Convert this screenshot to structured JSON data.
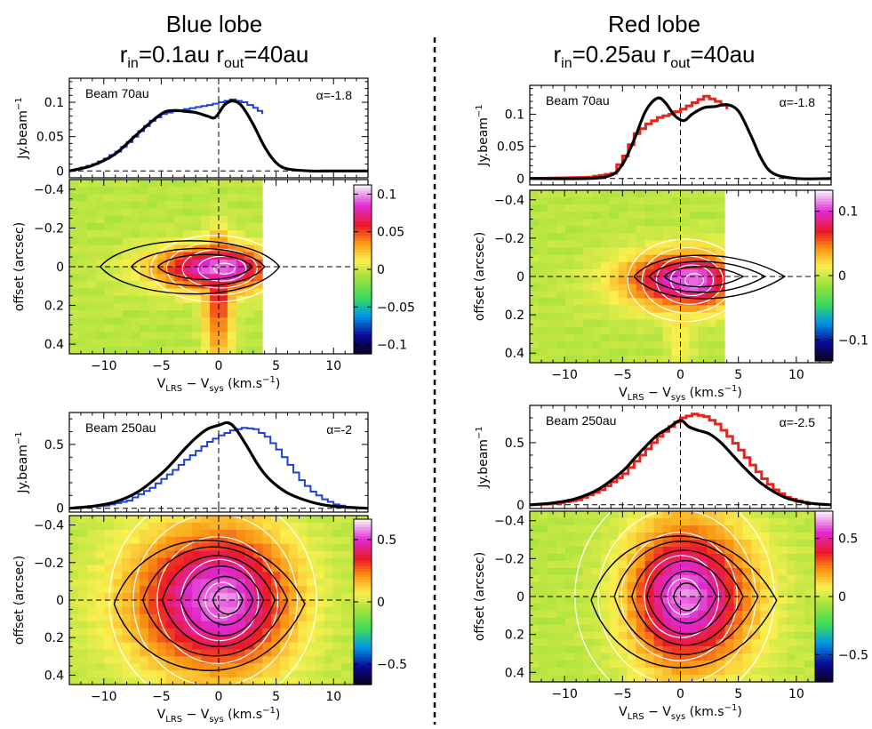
{
  "headers": {
    "blue": {
      "title": "Blue lobe",
      "r_in": "0.1au",
      "r_out": "40au"
    },
    "red": {
      "title": "Red lobe",
      "r_in": "0.25au",
      "r_out": "40au"
    }
  },
  "symbols": {
    "r": "r",
    "in": "in",
    "out": "out",
    "eq": "="
  },
  "axis_text": {
    "spec_y": "Jy.beam",
    "spec_y_sup": "−1",
    "pv_y": "offset (arcsec)",
    "pv_x_v": "V",
    "pv_x_lrs": "LRS",
    "pv_x_minus": " − V",
    "pv_x_sys": "sys",
    "pv_x_unit": " (km.s",
    "pv_x_unit_sup": "−1",
    "pv_x_close": ")"
  },
  "colors": {
    "blue_model": "#1f3fd6",
    "red_model": "#e8221c",
    "observed": "#000000",
    "divider": "#000000"
  },
  "chart_data": [
    {
      "id": "blue_top",
      "lobe": "blue",
      "type": "line",
      "spectrum": {
        "beam_label": "Beam 70au",
        "alpha_label": "α=-1.8",
        "xlim": [
          -13,
          13
        ],
        "ylim": [
          -0.01,
          0.135
        ],
        "yticks": [
          0,
          0.05,
          0.1
        ],
        "ytick_labels": [
          "0",
          "0.05",
          "0.1"
        ],
        "black": {
          "x": [
            -13,
            -11,
            -9,
            -7,
            -5,
            -4,
            -3,
            -2,
            -1,
            -0.3,
            0.5,
            1.2,
            2,
            3,
            4,
            5,
            6,
            8,
            10,
            13
          ],
          "y": [
            0,
            0.008,
            0.025,
            0.055,
            0.083,
            0.088,
            0.087,
            0.085,
            0.08,
            0.078,
            0.096,
            0.102,
            0.095,
            0.068,
            0.035,
            0.012,
            0.003,
            0,
            0,
            0
          ]
        },
        "color": {
          "x": [
            -13,
            -12,
            -11,
            -10,
            -9,
            -8,
            -7,
            -6,
            -5,
            -4,
            -3,
            -2,
            -1,
            0,
            1,
            2,
            3,
            3.8
          ],
          "y": [
            0,
            0.005,
            0.01,
            0.018,
            0.028,
            0.042,
            0.058,
            0.073,
            0.083,
            0.087,
            0.09,
            0.093,
            0.096,
            0.1,
            0.104,
            0.1,
            0.092,
            0.083
          ]
        },
        "color_role": "blue_model"
      },
      "pv": {
        "xlim": [
          -13,
          13
        ],
        "ylim": [
          0.45,
          -0.45
        ],
        "xticks": [
          -10,
          -5,
          0,
          5,
          10
        ],
        "xtick_labels": [
          "−10",
          "−5",
          "0",
          "5",
          "10"
        ],
        "yticks": [
          -0.4,
          -0.2,
          0,
          0.2,
          0.4
        ],
        "ytick_labels": [
          "−0.4",
          "−0.2",
          "0",
          "0.2",
          "0.4"
        ],
        "data_xmax": 3.8,
        "vmax": 0.11,
        "colorbar_ticks": [
          0.1,
          0.05,
          0,
          -0.05,
          -0.1
        ],
        "colorbar_labels": [
          "0.1",
          "0.05",
          "0",
          "−0.05",
          "−0.1"
        ],
        "model_blob": {
          "cx": 0.5,
          "cy": 0.01,
          "sx": 2.6,
          "sy": 0.08,
          "skew": 0.6,
          "tail": 0.4
        },
        "contours": [
          {
            "cx": -2.5,
            "cy": 0.0,
            "rx": 7.8,
            "ry": 0.17,
            "shift": 1.3
          },
          {
            "cx": -1.8,
            "cy": 0.0,
            "rx": 5.8,
            "ry": 0.12,
            "shift": 1.0
          },
          {
            "cx": -1.2,
            "cy": 0.0,
            "rx": 4.1,
            "ry": 0.08,
            "shift": 0.7
          }
        ]
      }
    },
    {
      "id": "red_top",
      "lobe": "red",
      "type": "line",
      "spectrum": {
        "beam_label": "Beam 70au",
        "alpha_label": "α=-1.8",
        "xlim": [
          -13,
          13
        ],
        "ylim": [
          -0.01,
          0.145
        ],
        "yticks": [
          0,
          0.05,
          0.1
        ],
        "ytick_labels": [
          "0",
          "0.05",
          "0.1"
        ],
        "black": {
          "x": [
            -13,
            -8,
            -6,
            -5,
            -4,
            -3,
            -2,
            -1.3,
            -0.5,
            0.3,
            1,
            2,
            3,
            4,
            5,
            6,
            7,
            8,
            10,
            13
          ],
          "y": [
            0,
            0,
            0.005,
            0.022,
            0.06,
            0.105,
            0.125,
            0.118,
            0.098,
            0.09,
            0.1,
            0.11,
            0.112,
            0.115,
            0.105,
            0.07,
            0.03,
            0.008,
            0,
            0
          ]
        },
        "color": {
          "x": [
            -13,
            -8,
            -6,
            -5,
            -4,
            -3,
            -2,
            -1,
            0,
            1,
            2,
            3,
            4
          ],
          "y": [
            0,
            0.002,
            0.008,
            0.035,
            0.07,
            0.085,
            0.095,
            0.1,
            0.108,
            0.118,
            0.128,
            0.12,
            0.108
          ]
        },
        "color_role": "red_model"
      },
      "pv": {
        "xlim": [
          -13,
          13
        ],
        "ylim": [
          0.45,
          -0.45
        ],
        "xticks": [
          -10,
          -5,
          0,
          5,
          10
        ],
        "xtick_labels": [
          "−10",
          "−5",
          "0",
          "5",
          "10"
        ],
        "yticks": [
          -0.4,
          -0.2,
          0,
          0.2,
          0.4
        ],
        "ytick_labels": [
          "−0.4",
          "−0.2",
          "0",
          "0.2",
          "0.4"
        ],
        "data_xmax": 3.8,
        "vmax": 0.13,
        "colorbar_ticks": [
          0.1,
          0,
          -0.1
        ],
        "colorbar_labels": [
          "0.1",
          "0",
          "−0.1"
        ],
        "model_blob": {
          "cx": 1.2,
          "cy": 0.02,
          "sx": 2.3,
          "sy": 0.1,
          "skew": 0.8,
          "tail": 0.15
        },
        "contours": [
          {
            "cx": 2.5,
            "cy": 0.0,
            "rx": 6.5,
            "ry": 0.14,
            "shift": -1.0
          },
          {
            "cx": 2.3,
            "cy": 0.0,
            "rx": 5.0,
            "ry": 0.1,
            "shift": -0.8
          },
          {
            "cx": 2.0,
            "cy": 0.0,
            "rx": 3.4,
            "ry": 0.065,
            "shift": -0.5
          }
        ]
      }
    },
    {
      "id": "blue_bottom",
      "lobe": "blue",
      "type": "line",
      "spectrum": {
        "beam_label": "Beam 250au",
        "alpha_label": "α=-2",
        "xlim": [
          -13,
          13
        ],
        "ylim": [
          -0.03,
          0.75
        ],
        "yticks": [
          0,
          0.5
        ],
        "ytick_labels": [
          "0",
          "0.5"
        ],
        "black": {
          "x": [
            -13,
            -11,
            -9,
            -7,
            -5,
            -4,
            -3,
            -2,
            -1,
            0,
            0.8,
            1.5,
            2.5,
            3.5,
            4.5,
            6,
            8,
            10,
            13
          ],
          "y": [
            0,
            0.015,
            0.05,
            0.13,
            0.27,
            0.36,
            0.46,
            0.55,
            0.62,
            0.65,
            0.67,
            0.62,
            0.48,
            0.33,
            0.22,
            0.12,
            0.05,
            0.015,
            0
          ]
        },
        "color": {
          "x": [
            -13,
            -10,
            -8,
            -6,
            -4,
            -3,
            -2,
            -1,
            0,
            1,
            2,
            3,
            4,
            5,
            6,
            7,
            8,
            9,
            10,
            11
          ],
          "y": [
            0,
            0.02,
            0.06,
            0.16,
            0.3,
            0.38,
            0.45,
            0.52,
            0.57,
            0.61,
            0.63,
            0.62,
            0.56,
            0.46,
            0.34,
            0.22,
            0.13,
            0.07,
            0.03,
            0.01
          ]
        },
        "color_role": "blue_model"
      },
      "pv": {
        "xlim": [
          -13,
          13
        ],
        "ylim": [
          0.45,
          -0.45
        ],
        "xticks": [
          -10,
          -5,
          0,
          5,
          10
        ],
        "xtick_labels": [
          "−10",
          "−5",
          "0",
          "5",
          "10"
        ],
        "yticks": [
          -0.4,
          -0.2,
          0,
          0.2,
          0.4
        ],
        "ytick_labels": [
          "−0.4",
          "−0.2",
          "0",
          "0.2",
          "0.4"
        ],
        "data_xmax": 13,
        "vmax": 0.65,
        "colorbar_ticks": [
          0.5,
          0,
          -0.5
        ],
        "colorbar_labels": [
          "0.5",
          "0",
          "−0.5"
        ],
        "model_blob": {
          "cx": 0.3,
          "cy": 0.0,
          "sx": 4.2,
          "sy": 0.27,
          "skew": 0.3,
          "tail": 0
        },
        "contours": [
          {
            "cx": -0.8,
            "cy": 0.02,
            "rx": 8.3,
            "ry": 0.43,
            "shift": 0.3
          },
          {
            "cx": -0.3,
            "cy": 0.0,
            "rx": 6.3,
            "ry": 0.36,
            "shift": 0.3
          },
          {
            "cx": 0.0,
            "cy": 0.0,
            "rx": 4.9,
            "ry": 0.3,
            "shift": 0.2
          },
          {
            "cx": 0.3,
            "cy": 0.0,
            "rx": 3.6,
            "ry": 0.23,
            "shift": 0.2
          },
          {
            "cx": 0.6,
            "cy": 0.0,
            "rx": 2.4,
            "ry": 0.16,
            "shift": 0.1
          },
          {
            "cx": 0.8,
            "cy": 0.0,
            "rx": 1.3,
            "ry": 0.09,
            "shift": 0.1
          }
        ]
      }
    },
    {
      "id": "red_bottom",
      "lobe": "red",
      "type": "line",
      "spectrum": {
        "beam_label": "Beam 250au",
        "alpha_label": "α=-2.5",
        "xlim": [
          -13,
          13
        ],
        "ylim": [
          -0.03,
          0.8
        ],
        "yticks": [
          0,
          0.5
        ],
        "ytick_labels": [
          "0",
          "0.5"
        ],
        "black": {
          "x": [
            -13,
            -11,
            -9,
            -7,
            -5,
            -4,
            -3,
            -2,
            -1,
            0,
            0.7,
            1.5,
            2.5,
            3.5,
            4.5,
            5.5,
            7,
            9,
            11,
            13
          ],
          "y": [
            0,
            0.015,
            0.05,
            0.13,
            0.27,
            0.37,
            0.47,
            0.56,
            0.62,
            0.68,
            0.63,
            0.6,
            0.57,
            0.5,
            0.4,
            0.3,
            0.17,
            0.06,
            0.015,
            0
          ]
        },
        "color": {
          "x": [
            -13,
            -11,
            -9,
            -7,
            -5,
            -4,
            -3,
            -2,
            -1,
            0,
            1,
            2,
            3,
            4,
            5,
            6,
            7,
            8,
            9,
            10,
            11
          ],
          "y": [
            0,
            0.01,
            0.04,
            0.12,
            0.25,
            0.35,
            0.45,
            0.55,
            0.63,
            0.7,
            0.73,
            0.71,
            0.65,
            0.55,
            0.44,
            0.32,
            0.21,
            0.12,
            0.06,
            0.03,
            0.01
          ]
        },
        "color_role": "red_model"
      },
      "pv": {
        "xlim": [
          -13,
          13
        ],
        "ylim": [
          0.45,
          -0.45
        ],
        "xticks": [
          -10,
          -5,
          0,
          5,
          10
        ],
        "xtick_labels": [
          "−10",
          "−5",
          "0",
          "5",
          "10"
        ],
        "yticks": [
          -0.4,
          -0.2,
          0,
          0.2,
          0.4
        ],
        "ytick_labels": [
          "−0.4",
          "−0.2",
          "0",
          "0.2",
          "0.4"
        ],
        "data_xmax": 13,
        "vmax": 0.72,
        "colorbar_ticks": [
          0.5,
          0,
          -0.5
        ],
        "colorbar_labels": [
          "0.5",
          "0",
          "−0.5"
        ],
        "model_blob": {
          "cx": 0.3,
          "cy": 0.0,
          "sx": 4.0,
          "sy": 0.27,
          "skew": -0.2,
          "tail": 0
        },
        "contours": [
          {
            "cx": 0.3,
            "cy": 0.02,
            "rx": 8.0,
            "ry": 0.43,
            "shift": -0.3
          },
          {
            "cx": 0.5,
            "cy": 0.0,
            "rx": 6.2,
            "ry": 0.37,
            "shift": -0.3
          },
          {
            "cx": 0.6,
            "cy": 0.0,
            "rx": 4.8,
            "ry": 0.31,
            "shift": -0.2
          },
          {
            "cx": 0.7,
            "cy": 0.0,
            "rx": 3.6,
            "ry": 0.24,
            "shift": -0.2
          },
          {
            "cx": 0.7,
            "cy": 0.0,
            "rx": 2.4,
            "ry": 0.17,
            "shift": -0.1
          },
          {
            "cx": 0.6,
            "cy": 0.0,
            "rx": 1.2,
            "ry": 0.09,
            "shift": 0
          }
        ]
      }
    }
  ]
}
